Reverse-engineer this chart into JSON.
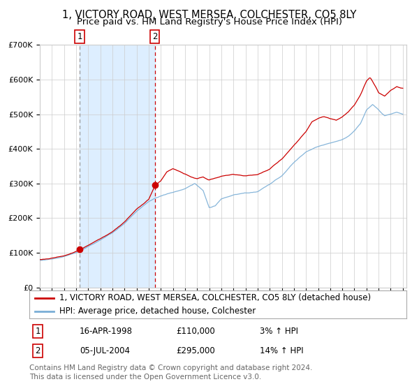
{
  "title": "1, VICTORY ROAD, WEST MERSEA, COLCHESTER, CO5 8LY",
  "subtitle": "Price paid vs. HM Land Registry's House Price Index (HPI)",
  "ylim": [
    0,
    700000
  ],
  "yticks": [
    0,
    100000,
    200000,
    300000,
    400000,
    500000,
    600000,
    700000
  ],
  "ytick_labels": [
    "£0",
    "£100K",
    "£200K",
    "£300K",
    "£400K",
    "£500K",
    "£600K",
    "£700K"
  ],
  "sale1_date_num": 1998.29,
  "sale1_price": 110000,
  "sale2_date_num": 2004.51,
  "sale2_price": 295000,
  "sale1_date_str": "16-APR-1998",
  "sale2_date_str": "05-JUL-2004",
  "sale1_pct": "3%",
  "sale2_pct": "14%",
  "line1_color": "#cc0000",
  "line2_color": "#7aaed6",
  "shading_color": "#ddeeff",
  "vline1_color": "#999999",
  "vline2_color": "#cc0000",
  "grid_color": "#cccccc",
  "bg_color": "#ffffff",
  "legend1_label": "1, VICTORY ROAD, WEST MERSEA, COLCHESTER, CO5 8LY (detached house)",
  "legend2_label": "HPI: Average price, detached house, Colchester",
  "footer": "Contains HM Land Registry data © Crown copyright and database right 2024.\nThis data is licensed under the Open Government Licence v3.0.",
  "title_fontsize": 10.5,
  "subtitle_fontsize": 9.5,
  "tick_fontsize": 8,
  "legend_fontsize": 8.5,
  "footer_fontsize": 7.5
}
